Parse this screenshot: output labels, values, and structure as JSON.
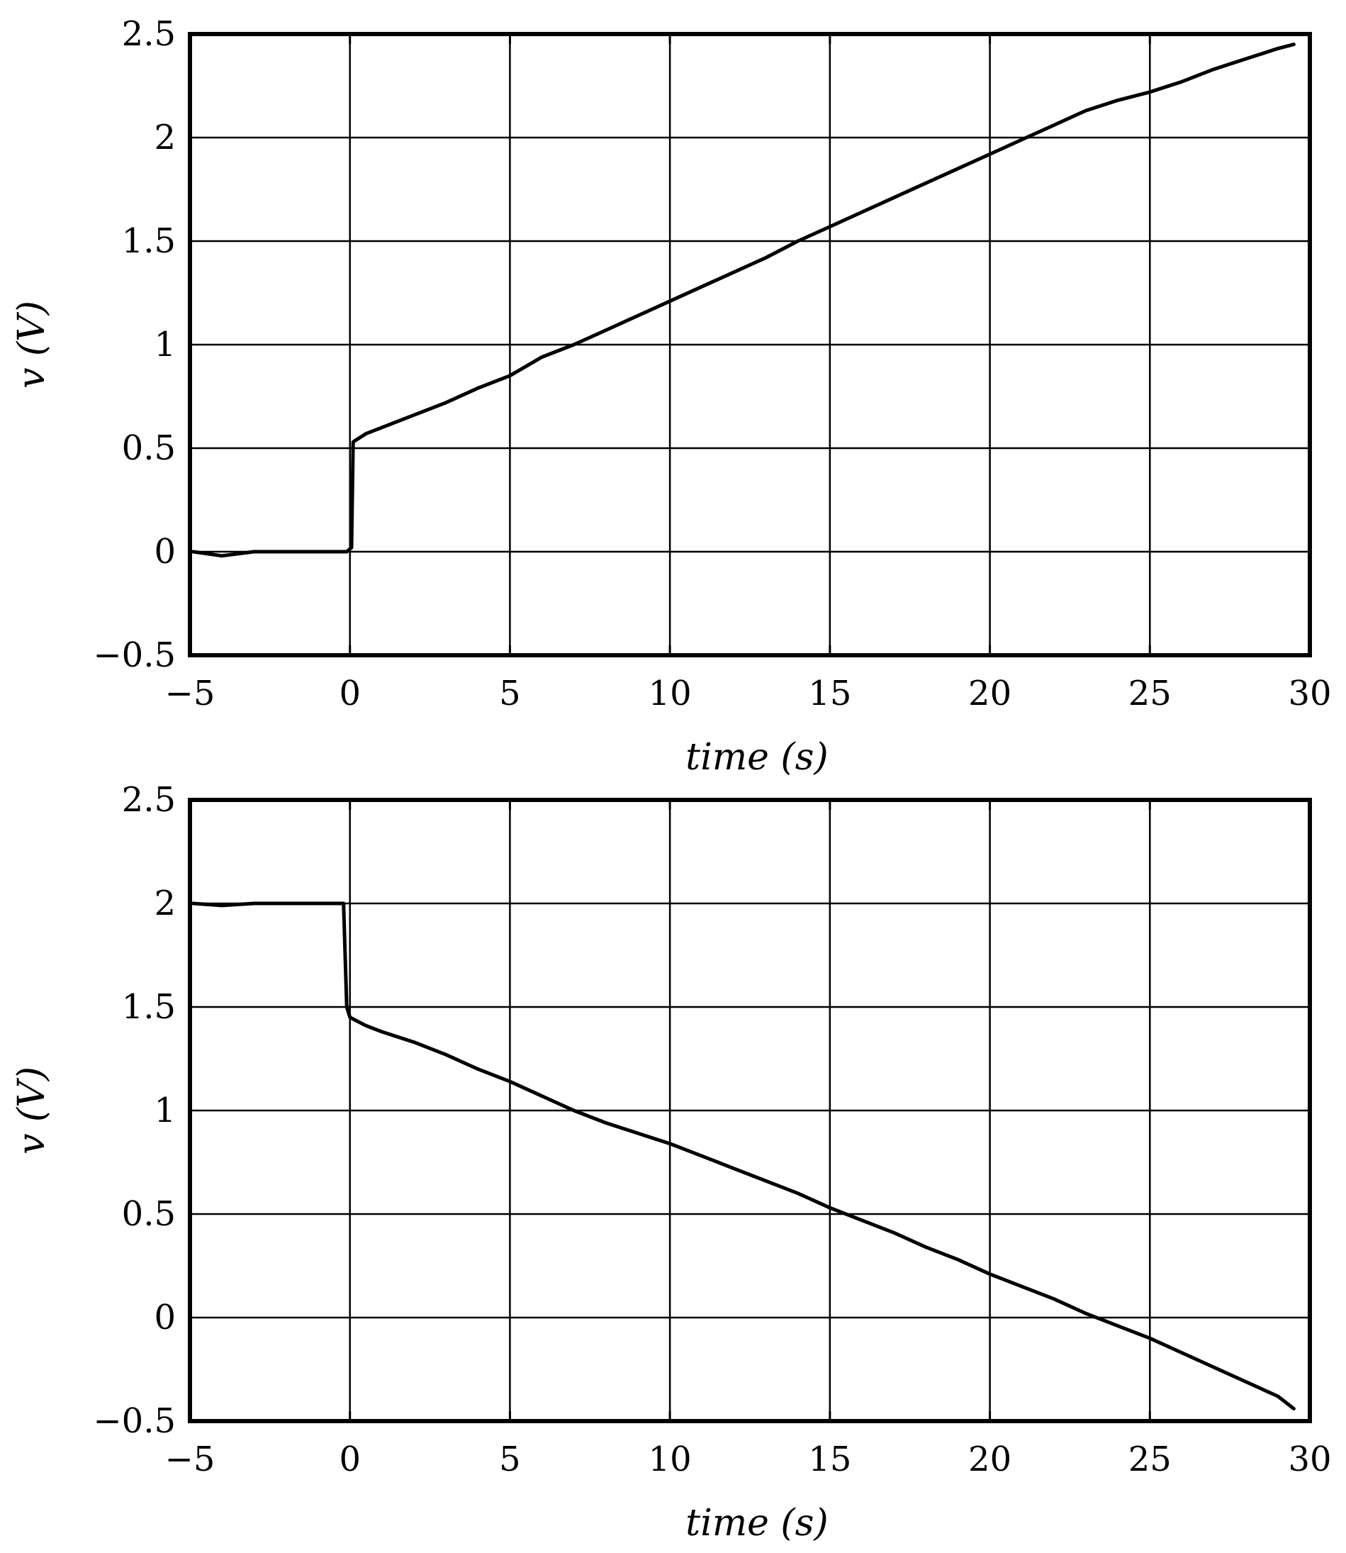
{
  "chart_data": [
    {
      "type": "line",
      "title": "",
      "xlabel": "time (s)",
      "ylabel": "v (V)",
      "xlim": [
        -5,
        30
      ],
      "ylim": [
        -0.5,
        2.5
      ],
      "xticks": [
        -5,
        0,
        5,
        10,
        15,
        20,
        25,
        30
      ],
      "xtick_labels": [
        "−5",
        "0",
        "5",
        "10",
        "15",
        "20",
        "25",
        "30"
      ],
      "yticks": [
        -0.5,
        0,
        0.5,
        1,
        1.5,
        2,
        2.5
      ],
      "ytick_labels": [
        "−0.5",
        "0",
        "0.5",
        "1",
        "1.5",
        "2",
        "2.5"
      ],
      "grid": true,
      "series": [
        {
          "x": [
            -4.9,
            -4,
            -3,
            -2,
            -1,
            -0.1,
            0.05,
            0.1,
            0.5,
            1,
            2,
            3,
            4,
            5,
            6,
            7,
            8,
            9,
            10,
            11,
            12,
            13,
            14,
            15,
            16,
            17,
            18,
            19,
            20,
            21,
            22,
            23,
            24,
            25,
            26,
            27,
            28,
            29,
            29.5
          ],
          "values": [
            0,
            -0.02,
            0,
            0,
            0,
            0,
            0.02,
            0.53,
            0.57,
            0.6,
            0.66,
            0.72,
            0.79,
            0.85,
            0.94,
            1.0,
            1.07,
            1.14,
            1.21,
            1.28,
            1.35,
            1.42,
            1.5,
            1.57,
            1.64,
            1.71,
            1.78,
            1.85,
            1.92,
            1.99,
            2.06,
            2.13,
            2.18,
            2.22,
            2.27,
            2.33,
            2.38,
            2.43,
            2.45
          ]
        }
      ]
    },
    {
      "type": "line",
      "title": "",
      "xlabel": "time (s)",
      "ylabel": "v (V)",
      "xlim": [
        -5,
        30
      ],
      "ylim": [
        -0.5,
        2.5
      ],
      "xticks": [
        -5,
        0,
        5,
        10,
        15,
        20,
        25,
        30
      ],
      "xtick_labels": [
        "−5",
        "0",
        "5",
        "10",
        "15",
        "20",
        "25",
        "30"
      ],
      "yticks": [
        -0.5,
        0,
        0.5,
        1,
        1.5,
        2,
        2.5
      ],
      "ytick_labels": [
        "−0.5",
        "0",
        "0.5",
        "1",
        "1.5",
        "2",
        "2.5"
      ],
      "grid": true,
      "series": [
        {
          "x": [
            -4.9,
            -4,
            -3,
            -2,
            -1,
            -0.2,
            -0.1,
            0,
            0.5,
            1,
            2,
            3,
            4,
            5,
            6,
            7,
            8,
            9,
            10,
            11,
            12,
            13,
            14,
            15,
            16,
            17,
            18,
            19,
            20,
            21,
            22,
            23,
            24,
            25,
            26,
            27,
            28,
            29,
            29.5
          ],
          "values": [
            2.0,
            1.99,
            2.0,
            2.0,
            2.0,
            2.0,
            1.5,
            1.45,
            1.41,
            1.38,
            1.33,
            1.27,
            1.2,
            1.14,
            1.07,
            1.0,
            0.94,
            0.89,
            0.84,
            0.78,
            0.72,
            0.66,
            0.6,
            0.53,
            0.47,
            0.41,
            0.34,
            0.28,
            0.21,
            0.15,
            0.09,
            0.02,
            -0.04,
            -0.1,
            -0.17,
            -0.24,
            -0.31,
            -0.38,
            -0.44
          ]
        }
      ]
    }
  ]
}
